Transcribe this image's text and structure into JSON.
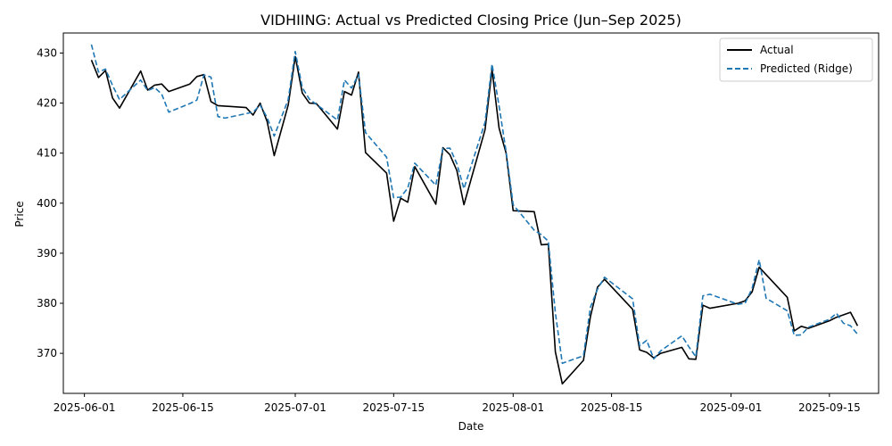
{
  "chart_data": {
    "type": "line",
    "title": "VIDHIING: Actual vs Predicted Closing Price (Jun–Sep 2025)",
    "xlabel": "Date",
    "ylabel": "Price",
    "xlim": [
      "2025-05-29",
      "2025-09-22"
    ],
    "ylim": [
      362,
      434
    ],
    "x_ticks": [
      "2025-06-01",
      "2025-06-15",
      "2025-07-01",
      "2025-07-15",
      "2025-08-01",
      "2025-08-15",
      "2025-09-01",
      "2025-09-15"
    ],
    "y_ticks": [
      370,
      380,
      390,
      400,
      410,
      420,
      430
    ],
    "grid": false,
    "legend_position": "top-right",
    "series": [
      {
        "name": "Actual",
        "color": "#000000",
        "style": "solid",
        "points": [
          [
            "2025-06-02",
            428.6
          ],
          [
            "2025-06-03",
            425.1
          ],
          [
            "2025-06-04",
            426.5
          ],
          [
            "2025-06-05",
            421.0
          ],
          [
            "2025-06-06",
            419.0
          ],
          [
            "2025-06-09",
            426.4
          ],
          [
            "2025-06-10",
            422.6
          ],
          [
            "2025-06-11",
            423.6
          ],
          [
            "2025-06-12",
            423.8
          ],
          [
            "2025-06-13",
            422.3
          ],
          [
            "2025-06-16",
            423.8
          ],
          [
            "2025-06-17",
            425.3
          ],
          [
            "2025-06-18",
            425.7
          ],
          [
            "2025-06-19",
            420.3
          ],
          [
            "2025-06-20",
            419.5
          ],
          [
            "2025-06-24",
            419.1
          ],
          [
            "2025-06-25",
            417.6
          ],
          [
            "2025-06-26",
            420.0
          ],
          [
            "2025-06-27",
            416.3
          ],
          [
            "2025-06-28",
            409.5
          ],
          [
            "2025-06-30",
            419.6
          ],
          [
            "2025-07-01",
            429.3
          ],
          [
            "2025-07-02",
            422.0
          ],
          [
            "2025-07-03",
            420.0
          ],
          [
            "2025-07-04",
            419.9
          ],
          [
            "2025-07-07",
            414.8
          ],
          [
            "2025-07-08",
            422.3
          ],
          [
            "2025-07-09",
            421.6
          ],
          [
            "2025-07-10",
            426.2
          ],
          [
            "2025-07-11",
            410.1
          ],
          [
            "2025-07-14",
            406.0
          ],
          [
            "2025-07-15",
            396.4
          ],
          [
            "2025-07-16",
            401.0
          ],
          [
            "2025-07-17",
            400.2
          ],
          [
            "2025-07-18",
            407.3
          ],
          [
            "2025-07-21",
            399.8
          ],
          [
            "2025-07-22",
            411.1
          ],
          [
            "2025-07-23",
            409.7
          ],
          [
            "2025-07-24",
            406.5
          ],
          [
            "2025-07-25",
            399.7
          ],
          [
            "2025-07-28",
            414.7
          ],
          [
            "2025-07-29",
            426.7
          ],
          [
            "2025-07-30",
            415.0
          ],
          [
            "2025-07-31",
            410.0
          ],
          [
            "2025-08-01",
            398.5
          ],
          [
            "2025-08-04",
            398.3
          ],
          [
            "2025-08-05",
            391.7
          ],
          [
            "2025-08-06",
            391.8
          ],
          [
            "2025-08-07",
            370.3
          ],
          [
            "2025-08-08",
            363.9
          ],
          [
            "2025-08-11",
            368.6
          ],
          [
            "2025-08-12",
            377.3
          ],
          [
            "2025-08-13",
            383.2
          ],
          [
            "2025-08-14",
            384.8
          ],
          [
            "2025-08-18",
            378.8
          ],
          [
            "2025-08-19",
            370.7
          ],
          [
            "2025-08-20",
            370.2
          ],
          [
            "2025-08-21",
            369.1
          ],
          [
            "2025-08-22",
            370.0
          ],
          [
            "2025-08-25",
            371.2
          ],
          [
            "2025-08-26",
            368.9
          ],
          [
            "2025-08-27",
            368.8
          ],
          [
            "2025-08-28",
            379.6
          ],
          [
            "2025-08-29",
            379.0
          ],
          [
            "2025-09-02",
            380.0
          ],
          [
            "2025-09-03",
            380.5
          ],
          [
            "2025-09-04",
            382.3
          ],
          [
            "2025-09-05",
            387.2
          ],
          [
            "2025-09-09",
            381.2
          ],
          [
            "2025-09-10",
            374.5
          ],
          [
            "2025-09-11",
            375.4
          ],
          [
            "2025-09-12",
            375.0
          ],
          [
            "2025-09-15",
            376.5
          ],
          [
            "2025-09-16",
            377.2
          ],
          [
            "2025-09-18",
            378.2
          ],
          [
            "2025-09-19",
            375.5
          ]
        ]
      },
      {
        "name": "Predicted (Ridge)",
        "color": "#1f77b4",
        "style": "dashed",
        "points": [
          [
            "2025-06-02",
            431.7
          ],
          [
            "2025-06-03",
            426.2
          ],
          [
            "2025-06-04",
            426.8
          ],
          [
            "2025-06-05",
            423.5
          ],
          [
            "2025-06-06",
            420.7
          ],
          [
            "2025-06-09",
            424.6
          ],
          [
            "2025-06-10",
            422.5
          ],
          [
            "2025-06-11",
            423.1
          ],
          [
            "2025-06-12",
            421.8
          ],
          [
            "2025-06-13",
            418.2
          ],
          [
            "2025-06-16",
            419.9
          ],
          [
            "2025-06-17",
            420.6
          ],
          [
            "2025-06-18",
            425.6
          ],
          [
            "2025-06-19",
            425.2
          ],
          [
            "2025-06-20",
            417.3
          ],
          [
            "2025-06-21",
            417.0
          ],
          [
            "2025-06-25",
            418.2
          ],
          [
            "2025-06-26",
            419.6
          ],
          [
            "2025-06-27",
            417.1
          ],
          [
            "2025-06-28",
            413.4
          ],
          [
            "2025-06-30",
            420.7
          ],
          [
            "2025-07-01",
            430.3
          ],
          [
            "2025-07-02",
            423.1
          ],
          [
            "2025-07-03",
            420.8
          ],
          [
            "2025-07-07",
            416.6
          ],
          [
            "2025-07-08",
            424.6
          ],
          [
            "2025-07-09",
            423.0
          ],
          [
            "2025-07-10",
            425.7
          ],
          [
            "2025-07-11",
            414.1
          ],
          [
            "2025-07-14",
            409.2
          ],
          [
            "2025-07-15",
            401.1
          ],
          [
            "2025-07-16",
            401.2
          ],
          [
            "2025-07-17",
            403.0
          ],
          [
            "2025-07-18",
            408.0
          ],
          [
            "2025-07-21",
            403.6
          ],
          [
            "2025-07-22",
            410.9
          ],
          [
            "2025-07-23",
            411.0
          ],
          [
            "2025-07-24",
            407.9
          ],
          [
            "2025-07-25",
            402.9
          ],
          [
            "2025-07-28",
            416.2
          ],
          [
            "2025-07-29",
            427.8
          ],
          [
            "2025-07-30",
            419.4
          ],
          [
            "2025-07-31",
            410.3
          ],
          [
            "2025-08-01",
            399.7
          ],
          [
            "2025-08-04",
            394.6
          ],
          [
            "2025-08-05",
            393.7
          ],
          [
            "2025-08-06",
            392.4
          ],
          [
            "2025-08-07",
            378.1
          ],
          [
            "2025-08-08",
            368.0
          ],
          [
            "2025-08-11",
            369.5
          ],
          [
            "2025-08-12",
            379.2
          ],
          [
            "2025-08-13",
            382.8
          ],
          [
            "2025-08-14",
            385.2
          ],
          [
            "2025-08-18",
            380.9
          ],
          [
            "2025-08-19",
            371.5
          ],
          [
            "2025-08-20",
            372.6
          ],
          [
            "2025-08-21",
            368.9
          ],
          [
            "2025-08-22",
            370.5
          ],
          [
            "2025-08-25",
            373.5
          ],
          [
            "2025-08-26",
            371.3
          ],
          [
            "2025-08-27",
            369.3
          ],
          [
            "2025-08-28",
            381.5
          ],
          [
            "2025-08-29",
            381.8
          ],
          [
            "2025-09-02",
            379.8
          ],
          [
            "2025-09-03",
            380.0
          ],
          [
            "2025-09-04",
            383.0
          ],
          [
            "2025-09-05",
            388.7
          ],
          [
            "2025-09-06",
            381.0
          ],
          [
            "2025-09-09",
            378.5
          ],
          [
            "2025-09-10",
            373.6
          ],
          [
            "2025-09-11",
            373.7
          ],
          [
            "2025-09-12",
            375.2
          ],
          [
            "2025-09-15",
            376.8
          ],
          [
            "2025-09-16",
            378.0
          ],
          [
            "2025-09-17",
            376.0
          ],
          [
            "2025-09-18",
            375.5
          ],
          [
            "2025-09-19",
            373.8
          ]
        ]
      }
    ]
  }
}
